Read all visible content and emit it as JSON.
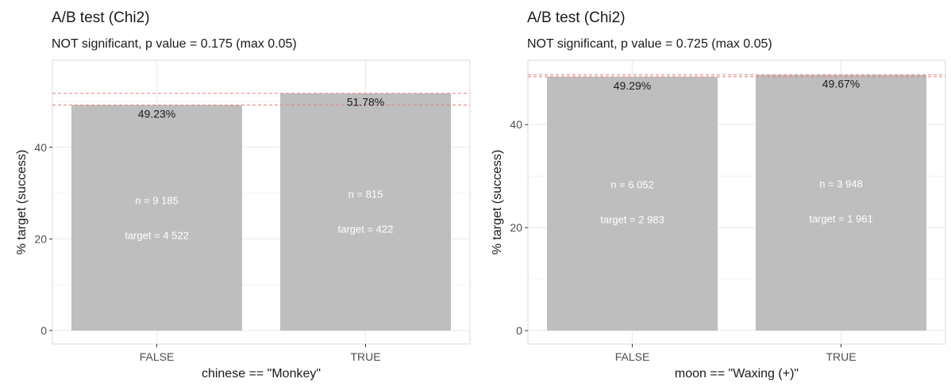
{
  "colors": {
    "bar": "#bebebe",
    "grid": "#ebebeb",
    "panel_border": "#d9d9d9",
    "ref_line": "#e08080",
    "label_text": "#1a1a1a",
    "inner_text": "#ffffff",
    "tick_text": "#4d4d4d"
  },
  "chart_data": [
    {
      "type": "bar",
      "title": "A/B test (Chi2)",
      "subtitle": "NOT significant, p value = 0.175 (max 0.05)",
      "xlabel": "chinese == \"Monkey\"",
      "ylabel": "% target (success)",
      "ylim": [
        0,
        59
      ],
      "yticks": [
        0,
        20,
        40
      ],
      "grid": true,
      "categories": [
        "FALSE",
        "TRUE"
      ],
      "values": [
        49.23,
        51.78
      ],
      "value_labels": [
        "49.23%",
        "51.78%"
      ],
      "n_labels": [
        "n = 9 185",
        "n =   815"
      ],
      "target_labels": [
        "target = 4 522",
        "target =   422"
      ],
      "reference_lines": [
        49.23,
        51.78
      ]
    },
    {
      "type": "bar",
      "title": "A/B test (Chi2)",
      "subtitle": "NOT significant, p value = 0.725 (max 0.05)",
      "xlabel": "moon == \"Waxing (+)\"",
      "ylabel": "% target (success)",
      "ylim": [
        0,
        52.5
      ],
      "yticks": [
        0,
        20,
        40
      ],
      "grid": true,
      "categories": [
        "FALSE",
        "TRUE"
      ],
      "values": [
        49.29,
        49.67
      ],
      "value_labels": [
        "49.29%",
        "49.67%"
      ],
      "n_labels": [
        "n = 6 052",
        "n = 3 948"
      ],
      "target_labels": [
        "target = 2 983",
        "target = 1 961"
      ],
      "reference_lines": [
        49.29,
        49.67
      ]
    }
  ]
}
